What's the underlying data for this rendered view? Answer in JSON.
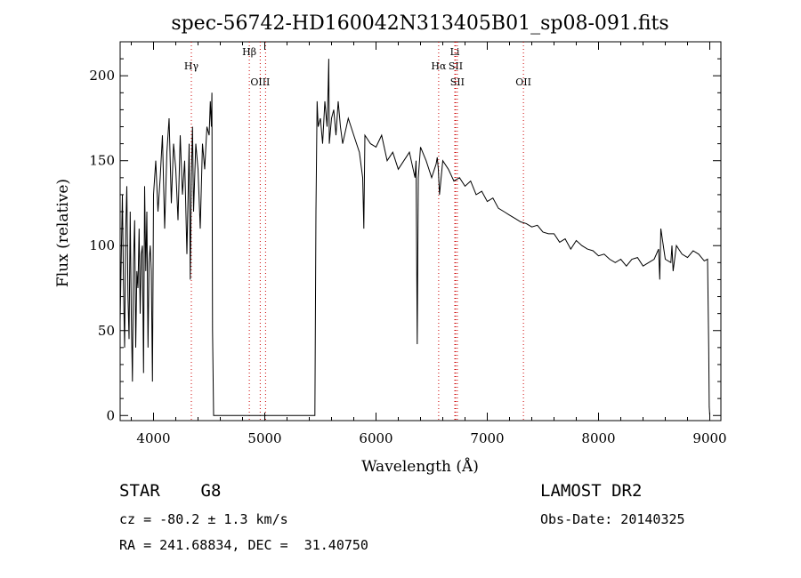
{
  "chart_data": {
    "type": "line",
    "title": "spec-56742-HD160042N313405B01_sp08-091.fits",
    "xlabel": "Wavelength (Å)",
    "ylabel": "Flux (relative)",
    "xlim": [
      3700,
      9100
    ],
    "ylim": [
      -3,
      220
    ],
    "x_ticks": [
      {
        "value": 4000,
        "label": "4000"
      },
      {
        "value": 5000,
        "label": "5000"
      },
      {
        "value": 6000,
        "label": "6000"
      },
      {
        "value": 7000,
        "label": "7000"
      },
      {
        "value": 8000,
        "label": "8000"
      },
      {
        "value": 9000,
        "label": "9000"
      }
    ],
    "y_ticks": [
      {
        "value": 0,
        "label": "0"
      },
      {
        "value": 50,
        "label": "50"
      },
      {
        "value": 100,
        "label": "100"
      },
      {
        "value": 150,
        "label": "150"
      },
      {
        "value": 200,
        "label": "200"
      }
    ],
    "grid": false,
    "spectral_lines": [
      {
        "name": "Hγ",
        "wavelength": 4340,
        "color": "#cc0000",
        "label_row": 2
      },
      {
        "name": "Hβ",
        "wavelength": 4861,
        "color": "#cc0000",
        "label_row": 1
      },
      {
        "name": "OIII",
        "wavelength": 4959,
        "color": "#cc0000",
        "label_row": 3
      },
      {
        "name": "OIII",
        "wavelength": 5007,
        "color": "#cc0000",
        "label_row": 0
      },
      {
        "name": "Hα",
        "wavelength": 6563,
        "color": "#cc0000",
        "label_row": 2
      },
      {
        "name": "Li",
        "wavelength": 6708,
        "color": "#cc0000",
        "label_row": 1
      },
      {
        "name": "SII",
        "wavelength": 6716,
        "color": "#cc0000",
        "label_row": 2
      },
      {
        "name": "SII",
        "wavelength": 6731,
        "color": "#cc0000",
        "label_row": 3
      },
      {
        "name": "OII",
        "wavelength": 7325,
        "color": "#cc0000",
        "label_row": 3
      }
    ],
    "series": [
      {
        "x": [
          3700,
          3710,
          3720,
          3730,
          3740,
          3750,
          3760,
          3770,
          3780,
          3790,
          3800,
          3810,
          3820,
          3830,
          3840,
          3850,
          3860,
          3870,
          3880,
          3890,
          3900,
          3910,
          3920,
          3930,
          3940,
          3950,
          3960,
          3970,
          3980,
          3990,
          4000,
          4020,
          4040,
          4060,
          4080,
          4100,
          4120,
          4140,
          4160,
          4180,
          4200,
          4220,
          4240,
          4260,
          4280,
          4300,
          4320,
          4330,
          4340,
          4350,
          4360,
          4380,
          4400,
          4420,
          4440,
          4460,
          4480,
          4500,
          4510,
          4520,
          4525,
          4530,
          4540,
          5450,
          5460,
          5470,
          5480,
          5500,
          5520,
          5540,
          5560,
          5570,
          5575,
          5580,
          5600,
          5620,
          5640,
          5660,
          5680,
          5700,
          5750,
          5800,
          5850,
          5880,
          5890,
          5900,
          5950,
          6000,
          6050,
          6100,
          6150,
          6200,
          6250,
          6300,
          6350,
          6360,
          6370,
          6380,
          6400,
          6450,
          6500,
          6540,
          6550,
          6560,
          6570,
          6600,
          6650,
          6700,
          6750,
          6800,
          6850,
          6900,
          6950,
          7000,
          7050,
          7100,
          7150,
          7200,
          7250,
          7300,
          7350,
          7400,
          7450,
          7500,
          7550,
          7600,
          7650,
          7700,
          7750,
          7800,
          7850,
          7900,
          7950,
          8000,
          8050,
          8100,
          8150,
          8200,
          8250,
          8300,
          8350,
          8400,
          8450,
          8500,
          8540,
          8550,
          8560,
          8600,
          8650,
          8660,
          8670,
          8700,
          8750,
          8800,
          8850,
          8900,
          8950,
          8980,
          8990,
          8995,
          9000
        ],
        "y": [
          55,
          95,
          130,
          75,
          40,
          110,
          135,
          70,
          45,
          120,
          60,
          20,
          90,
          115,
          40,
          85,
          75,
          110,
          60,
          95,
          100,
          25,
          135,
          85,
          120,
          40,
          90,
          100,
          85,
          20,
          130,
          150,
          120,
          140,
          165,
          110,
          155,
          175,
          125,
          160,
          145,
          115,
          165,
          130,
          150,
          95,
          160,
          80,
          140,
          170,
          120,
          160,
          145,
          110,
          160,
          145,
          170,
          165,
          185,
          170,
          190,
          50,
          0,
          0,
          120,
          185,
          170,
          175,
          160,
          185,
          170,
          195,
          210,
          160,
          175,
          180,
          165,
          185,
          170,
          160,
          175,
          165,
          155,
          140,
          110,
          165,
          160,
          158,
          165,
          150,
          155,
          145,
          150,
          155,
          140,
          150,
          42,
          140,
          158,
          150,
          140,
          148,
          152,
          145,
          130,
          150,
          145,
          138,
          140,
          135,
          138,
          130,
          132,
          126,
          128,
          122,
          120,
          118,
          116,
          114,
          113,
          111,
          112,
          108,
          107,
          107,
          102,
          104,
          98,
          103,
          100,
          98,
          97,
          94,
          95,
          92,
          90,
          92,
          88,
          92,
          93,
          88,
          90,
          92,
          98,
          80,
          110,
          92,
          90,
          100,
          85,
          100,
          95,
          93,
          97,
          95,
          91,
          92,
          40,
          5,
          0
        ]
      }
    ],
    "annotations": [
      {
        "text": "STAR    G8"
      },
      {
        "text": "cz = -80.2 ± 1.3 km/s"
      },
      {
        "text": "RA = 241.68834, DEC =  31.40750"
      },
      {
        "text": "LAMOST DR2"
      },
      {
        "text": "Obs-Date: 20140325"
      }
    ]
  }
}
